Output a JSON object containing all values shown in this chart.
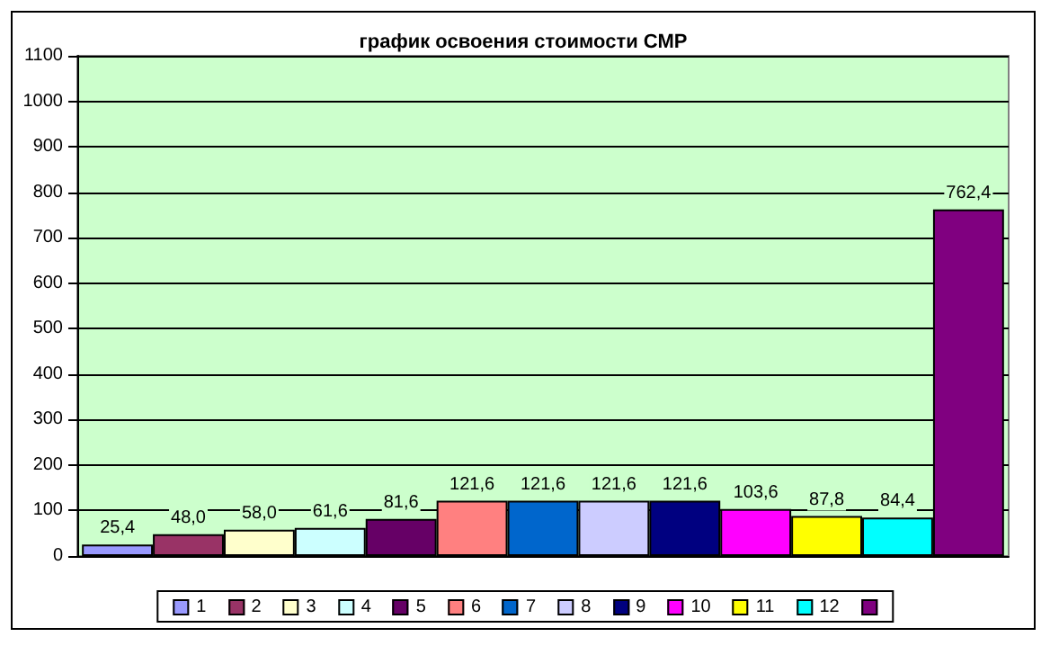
{
  "chart_data": {
    "type": "bar",
    "title": "график освоения стоимости СМР",
    "categories": [
      null
    ],
    "series": [
      {
        "name": "1",
        "color": "#9999ff",
        "values": [
          25.4
        ],
        "value_labels": [
          "25,4"
        ]
      },
      {
        "name": "2",
        "color": "#993366",
        "values": [
          48.0
        ],
        "value_labels": [
          "48,0"
        ]
      },
      {
        "name": "3",
        "color": "#ffffcc",
        "values": [
          58.0
        ],
        "value_labels": [
          "58,0"
        ]
      },
      {
        "name": "4",
        "color": "#ccffff",
        "values": [
          61.6
        ],
        "value_labels": [
          "61,6"
        ]
      },
      {
        "name": "5",
        "color": "#660066",
        "values": [
          81.6
        ],
        "value_labels": [
          "81,6"
        ]
      },
      {
        "name": "6",
        "color": "#ff8080",
        "values": [
          121.6
        ],
        "value_labels": [
          "121,6"
        ]
      },
      {
        "name": "7",
        "color": "#0066cc",
        "values": [
          121.6
        ],
        "value_labels": [
          "121,6"
        ]
      },
      {
        "name": "8",
        "color": "#ccccff",
        "values": [
          121.6
        ],
        "value_labels": [
          "121,6"
        ]
      },
      {
        "name": "9",
        "color": "#000080",
        "values": [
          121.6
        ],
        "value_labels": [
          "121,6"
        ]
      },
      {
        "name": "10",
        "color": "#ff00ff",
        "values": [
          103.6
        ],
        "value_labels": [
          "103,6"
        ]
      },
      {
        "name": "11",
        "color": "#ffff00",
        "values": [
          87.8
        ],
        "value_labels": [
          "87,8"
        ]
      },
      {
        "name": "12",
        "color": "#00ffff",
        "values": [
          84.4
        ],
        "value_labels": [
          "84,4"
        ]
      },
      {
        "color": "#800080",
        "values": [
          762.4
        ],
        "value_labels": [
          "762,4"
        ]
      }
    ],
    "ylim": [
      0,
      1100
    ],
    "yticks": [
      0,
      100,
      200,
      300,
      400,
      500,
      600,
      700,
      800,
      900,
      1000,
      1100
    ],
    "grid": "y",
    "legend": "bottom"
  }
}
